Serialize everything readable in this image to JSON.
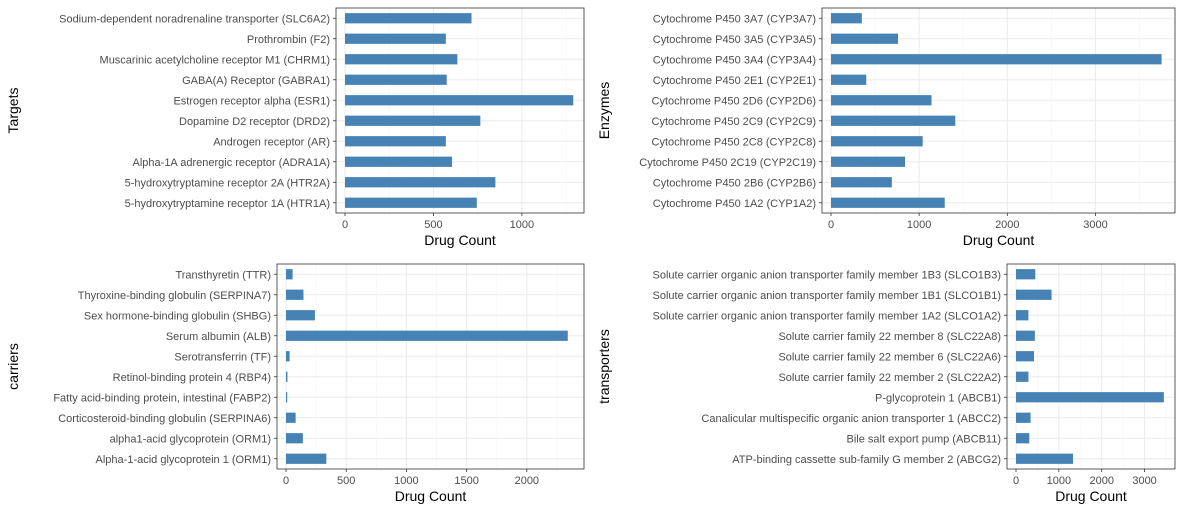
{
  "colors": {
    "bar": "#4682b4",
    "grid_major": "#ebebeb",
    "grid_minor": "#f5f5f5",
    "panel_border": "#333333",
    "tick_text": "#4d4d4d"
  },
  "chart_data": [
    {
      "type": "bar",
      "orientation": "horizontal",
      "title": "",
      "xlabel": "Drug Count",
      "ylabel": "Targets",
      "xlim": [
        0,
        1300
      ],
      "x_ticks": [
        0,
        500,
        1000
      ],
      "x_tick_labels": [
        "0",
        "500",
        "1000"
      ],
      "grid": true,
      "categories": [
        "5-hydroxytryptamine receptor 1A (HTR1A)",
        "5-hydroxytryptamine receptor 2A (HTR2A)",
        "Alpha-1A adrenergic receptor (ADRA1A)",
        "Androgen receptor (AR)",
        "Dopamine D2 receptor (DRD2)",
        "Estrogen receptor alpha (ESR1)",
        "GABA(A) Receptor (GABRA1)",
        "Muscarinic acetylcholine receptor M1 (CHRM1)",
        "Prothrombin (F2)",
        "Sodium-dependent noradrenaline transporter (SLC6A2)"
      ],
      "values": [
        745,
        850,
        605,
        570,
        765,
        1290,
        575,
        635,
        570,
        715
      ]
    },
    {
      "type": "bar",
      "orientation": "horizontal",
      "title": "",
      "xlabel": "Drug Count",
      "ylabel": "Enzymes",
      "xlim": [
        0,
        3800
      ],
      "x_ticks": [
        0,
        1000,
        2000,
        3000
      ],
      "x_tick_labels": [
        "0",
        "1000",
        "2000",
        "3000"
      ],
      "grid": true,
      "categories": [
        "Cytochrome P450 1A2 (CYP1A2)",
        "Cytochrome P450 2B6 (CYP2B6)",
        "Cytochrome P450 2C19 (CYP2C19)",
        "Cytochrome P450 2C8 (CYP2C8)",
        "Cytochrome P450 2C9 (CYP2C9)",
        "Cytochrome P450 2D6 (CYP2D6)",
        "Cytochrome P450 2E1 (CYP2E1)",
        "Cytochrome P450 3A4 (CYP3A4)",
        "Cytochrome P450 3A5 (CYP3A5)",
        "Cytochrome P450 3A7 (CYP3A7)"
      ],
      "values": [
        1290,
        690,
        840,
        1040,
        1410,
        1140,
        400,
        3750,
        760,
        350
      ]
    },
    {
      "type": "bar",
      "orientation": "horizontal",
      "title": "",
      "xlabel": "Drug Count",
      "ylabel": "carriers",
      "xlim": [
        0,
        2400
      ],
      "x_ticks": [
        0,
        500,
        1000,
        1500,
        2000
      ],
      "x_tick_labels": [
        "0",
        "500",
        "1000",
        "1500",
        "2000"
      ],
      "grid": true,
      "categories": [
        "Alpha-1-acid glycoprotein 1 (ORM1)",
        "alpha1-acid glycoprotein (ORM1)",
        "Corticosteroid-binding globulin (SERPINA6)",
        "Fatty acid-binding protein, intestinal (FABP2)",
        "Retinol-binding protein 4 (RBP4)",
        "Serotransferrin (TF)",
        "Serum albumin (ALB)",
        "Sex hormone-binding globulin (SHBG)",
        "Thyroxine-binding globulin (SERPINA7)",
        "Transthyretin (TTR)"
      ],
      "values": [
        335,
        140,
        80,
        10,
        12,
        30,
        2340,
        240,
        145,
        55
      ]
    },
    {
      "type": "bar",
      "orientation": "horizontal",
      "title": "",
      "xlabel": "Drug Count",
      "ylabel": "transporters",
      "xlim": [
        0,
        3500
      ],
      "x_ticks": [
        0,
        1000,
        2000,
        3000
      ],
      "x_tick_labels": [
        "0",
        "1000",
        "2000",
        "3000"
      ],
      "grid": true,
      "categories": [
        "ATP-binding cassette sub-family G member 2 (ABCG2)",
        "Bile salt export pump (ABCB11)",
        "Canalicular multispecific organic anion transporter 1 (ABCC2)",
        "P-glycoprotein 1 (ABCB1)",
        "Solute carrier family 22 member 2 (SLC22A2)",
        "Solute carrier family 22 member 6 (SLC22A6)",
        "Solute carrier family 22 member 8 (SLC22A8)",
        "Solute carrier organic anion transporter family member 1A2 (SLCO1A2)",
        "Solute carrier organic anion transporter family member 1B1 (SLCO1B1)",
        "Solute carrier organic anion transporter family member 1B3 (SLCO1B3)"
      ],
      "values": [
        1330,
        310,
        340,
        3450,
        290,
        420,
        440,
        290,
        830,
        450
      ]
    }
  ]
}
